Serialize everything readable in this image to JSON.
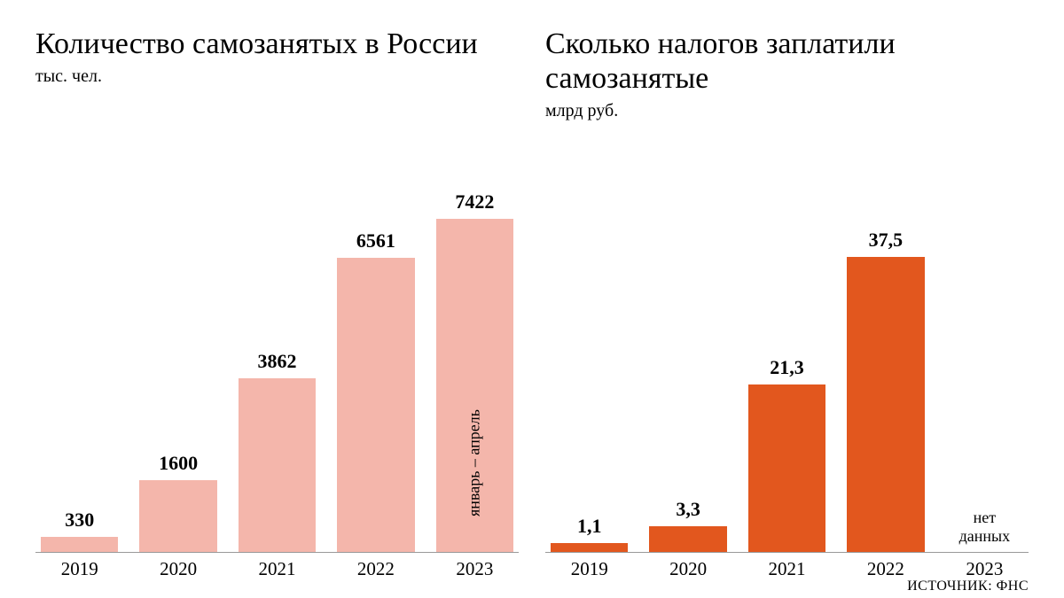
{
  "left_chart": {
    "type": "bar",
    "title": "Количество самозанятых в России",
    "subtitle": "тыс. чел.",
    "bar_color": "#f4b6ab",
    "categories": [
      "2019",
      "2020",
      "2021",
      "2022",
      "2023"
    ],
    "values": [
      330,
      1600,
      3862,
      6561,
      7422
    ],
    "value_labels": [
      "330",
      "1600",
      "3862",
      "6561",
      "7422"
    ],
    "ymax": 7800,
    "bar_inlabels": [
      "",
      "",
      "",
      "",
      "январь – апрель"
    ],
    "title_fontsize": 34,
    "value_fontsize": 22,
    "tick_fontsize": 21,
    "background_color": "#ffffff",
    "axis_color": "#999999"
  },
  "right_chart": {
    "type": "bar",
    "title": "Сколько налогов заплатили самозанятые",
    "subtitle": "млрд руб.",
    "bar_color": "#e2571e",
    "categories": [
      "2019",
      "2020",
      "2021",
      "2022",
      "2023"
    ],
    "values": [
      1.1,
      3.3,
      21.3,
      37.5,
      null
    ],
    "value_labels": [
      "1,1",
      "3,3",
      "21,3",
      "37,5",
      ""
    ],
    "nodata_label": "нет данных",
    "ymax": 40,
    "title_fontsize": 34,
    "value_fontsize": 22,
    "tick_fontsize": 21,
    "background_color": "#ffffff",
    "axis_color": "#999999"
  },
  "source": "ИСТОЧНИК: ФНС"
}
